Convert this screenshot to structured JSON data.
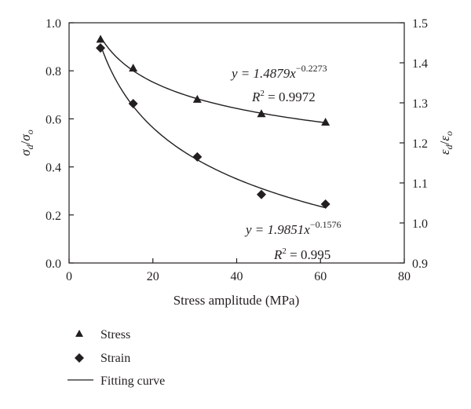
{
  "chart_data": {
    "type": "scatter",
    "xlabel": "Stress amplitude (MPa)",
    "xlim": [
      0,
      80
    ],
    "xticks": [
      "0",
      "20",
      "40",
      "60",
      "80"
    ],
    "ylabel_left": {
      "base": "σ",
      "sub1": "d",
      "sep": "/",
      "base2": "σ",
      "sub2": "o"
    },
    "ylim_left": [
      0.0,
      1.0
    ],
    "yticks_left": [
      "0.0",
      "0.2",
      "0.4",
      "0.6",
      "0.8",
      "1.0"
    ],
    "ylabel_right": {
      "base": "ε",
      "sub1": "d",
      "sep": "/",
      "base2": "ε",
      "sub2": "o"
    },
    "ylim_right": [
      0.9,
      1.5
    ],
    "yticks_right": [
      "0.9",
      "1.0",
      "1.1",
      "1.2",
      "1.3",
      "1.4",
      "1.5"
    ],
    "series": [
      {
        "name": "Stress",
        "axis": "left",
        "marker": "triangle",
        "x": [
          7.5,
          15.3,
          30.6,
          45.9,
          61.2
        ],
        "y": [
          0.93,
          0.81,
          0.68,
          0.62,
          0.585
        ],
        "fit": {
          "a": 1.4879,
          "b": -0.2273
        }
      },
      {
        "name": "Strain",
        "axis": "right",
        "marker": "diamond",
        "x": [
          7.5,
          15.3,
          30.6,
          45.9,
          61.2
        ],
        "y": [
          1.437,
          1.298,
          1.165,
          1.071,
          1.047
        ],
        "fit": {
          "a": 1.9851,
          "b": -0.1576
        }
      }
    ],
    "fit_name": "Fitting curve",
    "annotations": {
      "stress": {
        "eq_prefix": "y = 1.4879x",
        "eq_exp": "−0.2273",
        "r2_prefix": "R",
        "r2_sup": "2",
        "r2_value": " = 0.9972"
      },
      "strain": {
        "eq_prefix": "y = 1.9851x",
        "eq_exp": "−0.1576",
        "r2_prefix": "R",
        "r2_sup": "2",
        "r2_value": " = 0.995"
      }
    },
    "legend": {
      "position": "bottom-left",
      "items": [
        {
          "label": "Stress",
          "symbol": "triangle"
        },
        {
          "label": "Strain",
          "symbol": "diamond"
        },
        {
          "label": "Fitting curve",
          "symbol": "line"
        }
      ]
    },
    "grid": false,
    "colors": {
      "ink": "#231f20",
      "background": "#ffffff"
    }
  }
}
